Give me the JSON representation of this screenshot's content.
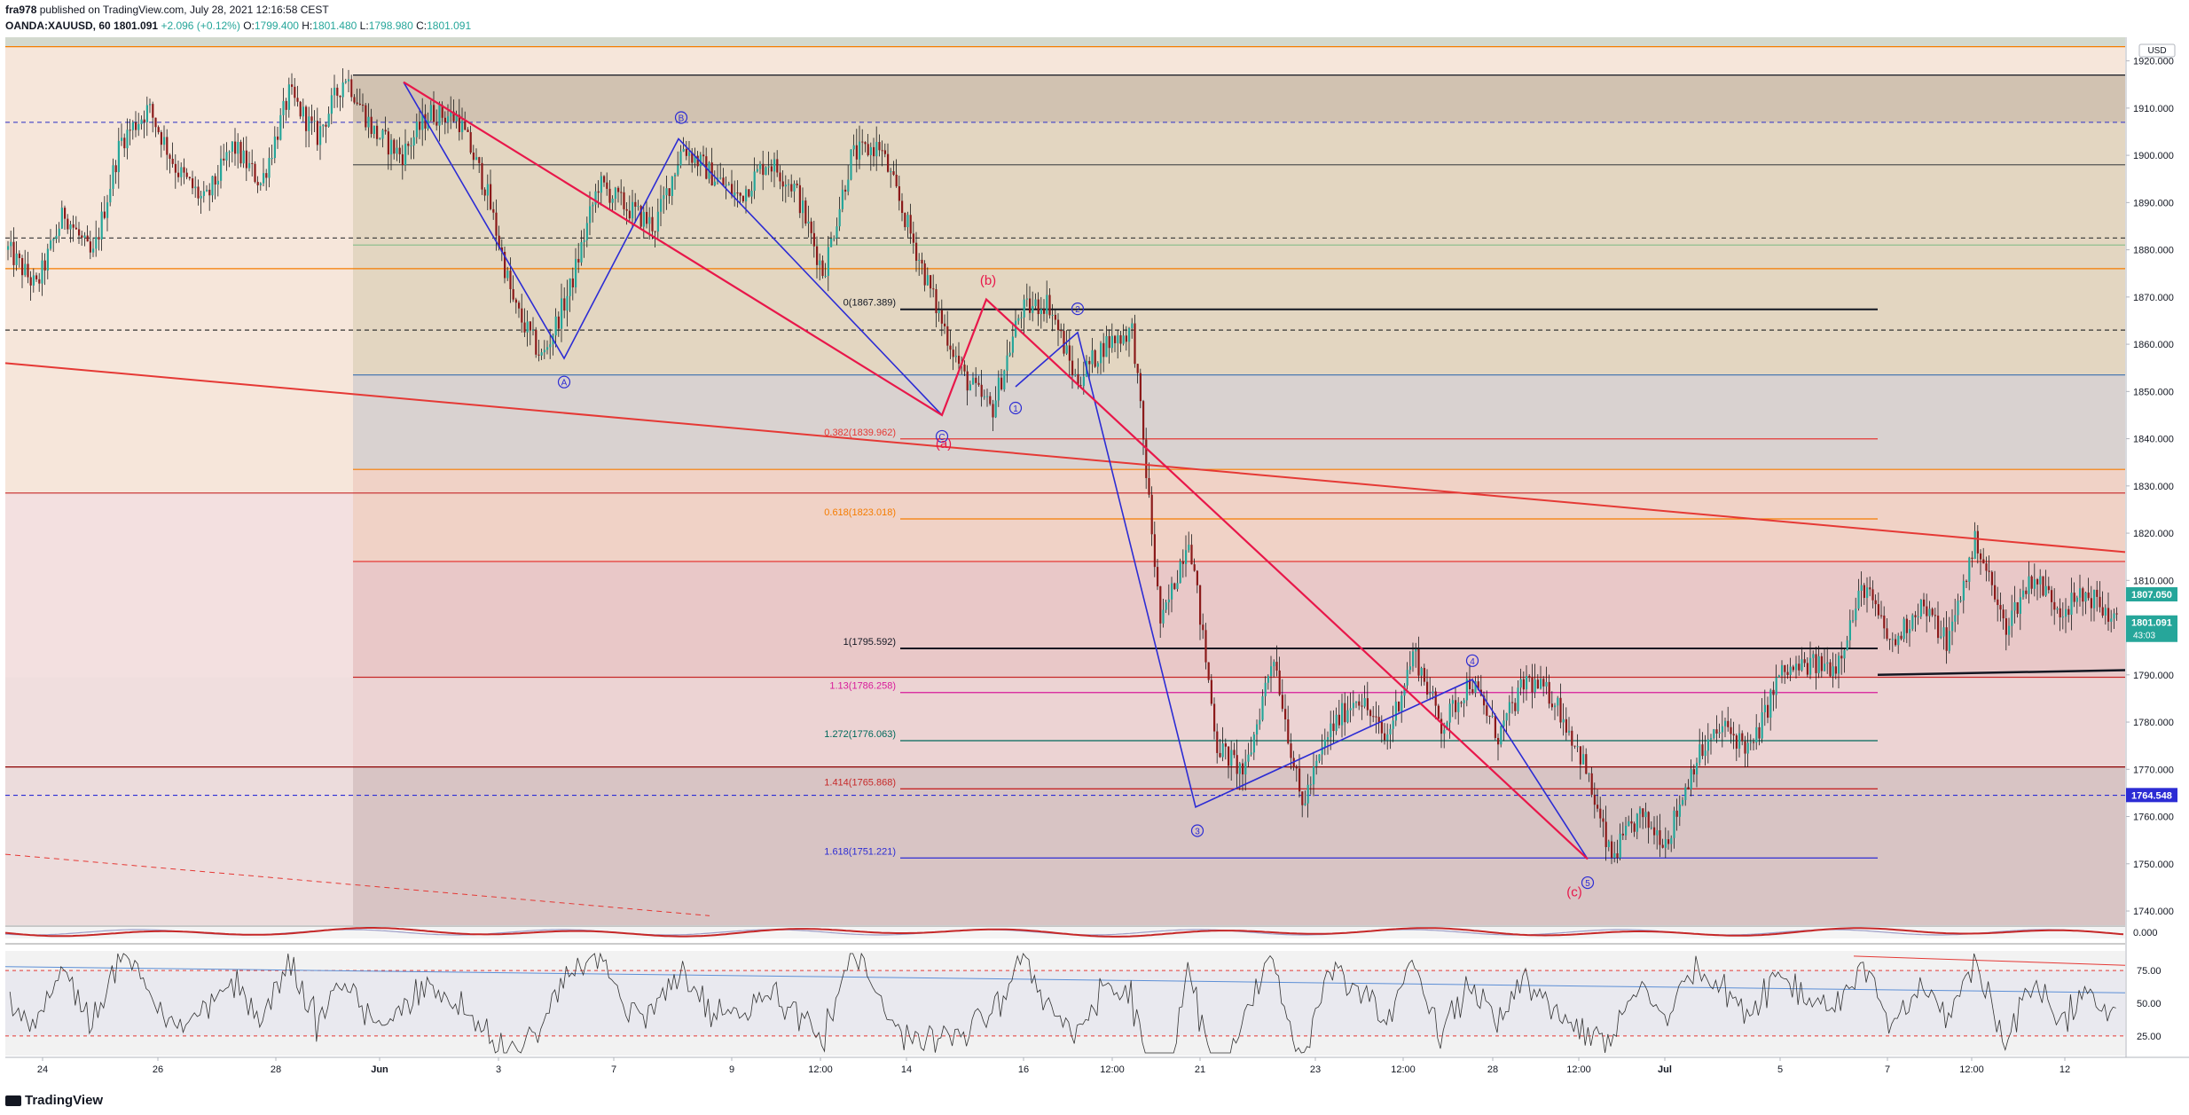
{
  "header": {
    "user": "fra978",
    "published": "published on TradingView.com, July 28, 2021 12:16:58 CEST",
    "symbol": "OANDA:XAUUSD, 60",
    "last": "1801.091",
    "change": "+2.096 (+0.12%)",
    "o_label": "O:",
    "o": "1799.400",
    "h_label": "H:",
    "h": "1801.480",
    "l_label": "L:",
    "l": "1798.980",
    "c_label": "C:",
    "c": "1801.091"
  },
  "footer": {
    "brand": "TradingView",
    "logo_icon": "tradingview-logo-icon"
  },
  "colors": {
    "candle_up": "#26a69a",
    "candle_down": "#8b1a1a",
    "blue_wave": "#2c2cd4",
    "red_wave": "#e8174a",
    "orange": "#f57c00",
    "trend": "#e53935"
  },
  "chart_data": [
    {
      "type": "candlestick",
      "currency": "USD",
      "y_ticks": [
        1740,
        1750,
        1760,
        1770,
        1780,
        1790,
        1800,
        1810,
        1820,
        1830,
        1840,
        1850,
        1860,
        1870,
        1880,
        1890,
        1900,
        1910,
        1920
      ],
      "y_tick_labels": [
        "1740.000",
        "1750.000",
        "1760.000",
        "1770.000",
        "1780.000",
        "1790.000",
        "1800.000",
        "1810.000",
        "1820.000",
        "1830.000",
        "1840.000",
        "1850.000",
        "1860.000",
        "1870.000",
        "1880.000",
        "1890.000",
        "1900.000",
        "1910.000",
        "1920.000"
      ],
      "ylim": [
        1737,
        1925
      ],
      "x_tick_labels": [
        "24",
        "26",
        "28",
        "Jun",
        "3",
        "7",
        "9",
        "12:00",
        "14",
        "16",
        "12:00",
        "21",
        "23",
        "12:00",
        "28",
        "12:00",
        "Jul",
        "5",
        "7",
        "12:00",
        "12"
      ],
      "price_badges": [
        {
          "value": 1807.05,
          "label": "1807.050",
          "color": "#26a69a"
        },
        {
          "value": 1801.091,
          "label": "1801.091",
          "sub": "43:03",
          "color": "#26a69a"
        },
        {
          "value": 1764.548,
          "label": "1764.548",
          "color": "#2c2cd4"
        }
      ],
      "fib_levels": [
        {
          "label": "0(1867.389)",
          "value": 1867.389,
          "color": "#131722"
        },
        {
          "label": "0.382(1839.962)",
          "value": 1839.962,
          "color": "#e53935"
        },
        {
          "label": "0.618(1823.018)",
          "value": 1823.018,
          "color": "#f57c00"
        },
        {
          "label": "1(1795.592)",
          "value": 1795.592,
          "color": "#131722"
        },
        {
          "label": "1.13(1786.258)",
          "value": 1786.258,
          "color": "#d81b9a"
        },
        {
          "label": "1.272(1776.063)",
          "value": 1776.063,
          "color": "#00695c"
        },
        {
          "label": "1.414(1765.868)",
          "value": 1765.868,
          "color": "#c62828"
        },
        {
          "label": "1.618(1751.221)",
          "value": 1751.221,
          "color": "#2c2cd4"
        }
      ],
      "horizontal_lines": [
        {
          "value": 1923,
          "color": "#f57c00",
          "style": "solid"
        },
        {
          "value": 1917,
          "color": "#131722",
          "style": "solid"
        },
        {
          "value": 1907,
          "color": "#5050c8",
          "style": "dashed"
        },
        {
          "value": 1898,
          "color": "#555555",
          "style": "solid"
        },
        {
          "value": 1882.5,
          "color": "#333333",
          "style": "dashed"
        },
        {
          "value": 1881,
          "color": "#8fbf8f",
          "style": "solid"
        },
        {
          "value": 1876,
          "color": "#f57c00",
          "style": "solid"
        },
        {
          "value": 1863,
          "color": "#333333",
          "style": "dashed"
        },
        {
          "value": 1853.5,
          "color": "#3a6fb0",
          "style": "solid"
        },
        {
          "value": 1833.5,
          "color": "#f57c00",
          "style": "solid"
        },
        {
          "value": 1828.5,
          "color": "#c62828",
          "style": "solid"
        },
        {
          "value": 1814,
          "color": "#e53935",
          "style": "solid"
        },
        {
          "value": 1789.5,
          "color": "#c62828",
          "style": "solid"
        },
        {
          "value": 1770.5,
          "color": "#8b0000",
          "style": "solid"
        },
        {
          "value": 1764.5,
          "color": "#2c2cd4",
          "style": "dashed"
        }
      ],
      "wave_labels": [
        {
          "text": "A",
          "color": "#2c2cd4",
          "circled": true
        },
        {
          "text": "B",
          "color": "#2c2cd4",
          "circled": true
        },
        {
          "text": "C",
          "color": "#2c2cd4",
          "circled": true
        },
        {
          "text": "(a)",
          "color": "#e8174a",
          "circled": false
        },
        {
          "text": "(b)",
          "color": "#e8174a",
          "circled": false
        },
        {
          "text": "(c)",
          "color": "#e8174a",
          "circled": false
        },
        {
          "text": "1",
          "color": "#2c2cd4",
          "circled": true
        },
        {
          "text": "2",
          "color": "#2c2cd4",
          "circled": true
        },
        {
          "text": "3",
          "color": "#2c2cd4",
          "circled": true
        },
        {
          "text": "4",
          "color": "#2c2cd4",
          "circled": true
        },
        {
          "text": "5",
          "color": "#2c2cd4",
          "circled": true
        }
      ],
      "key_price_path": [
        1880,
        1872,
        1888,
        1878,
        1903,
        1910,
        1897,
        1890,
        1902,
        1894,
        1913,
        1904,
        1917,
        1905,
        1900,
        1909,
        1908,
        1893,
        1868,
        1857,
        1872,
        1894,
        1889,
        1885,
        1902,
        1896,
        1891,
        1899,
        1893,
        1875,
        1900,
        1902,
        1885,
        1868,
        1853,
        1846,
        1867,
        1869,
        1852,
        1860,
        1863,
        1800,
        1820,
        1775,
        1769,
        1795,
        1762,
        1778,
        1786,
        1776,
        1795,
        1779,
        1789,
        1777,
        1789,
        1785,
        1772,
        1751,
        1760,
        1755,
        1772,
        1779,
        1774,
        1790,
        1792,
        1792,
        1809,
        1796,
        1805,
        1797,
        1819,
        1800,
        1811,
        1804,
        1807,
        1801
      ]
    },
    {
      "type": "line",
      "name": "oscillator",
      "y_tick_labels": [
        "0.000"
      ]
    },
    {
      "type": "line",
      "name": "rsi",
      "y_ticks": [
        25,
        50,
        75
      ],
      "y_tick_labels": [
        "25.00",
        "50.00",
        "75.00"
      ],
      "ylim": [
        10,
        90
      ]
    }
  ]
}
